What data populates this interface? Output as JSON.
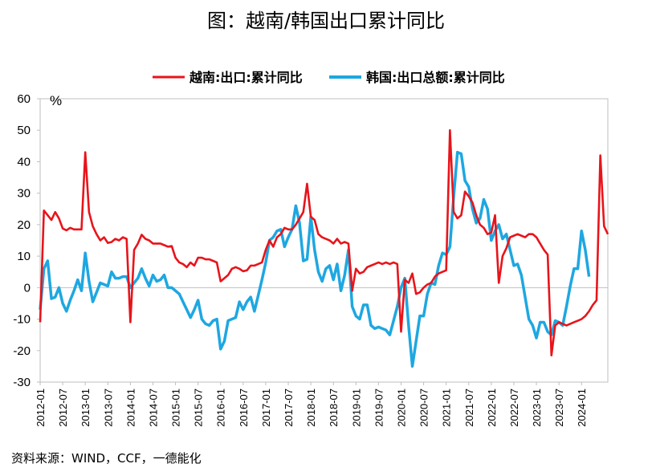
{
  "title": "图：越南/韩国出口累计同比",
  "source": "资料来源：WIND，CCF，一德能化",
  "chart_data": {
    "type": "line",
    "unit_label": "%",
    "ylim": [
      -30,
      60
    ],
    "yticks": [
      60,
      50,
      40,
      30,
      20,
      10,
      0,
      -10,
      -20,
      -30
    ],
    "x_start": "2012-01",
    "x_end": "2024-04",
    "xtick_labels": [
      "2012-01",
      "2012-07",
      "2013-01",
      "2013-07",
      "2014-01",
      "2014-07",
      "2015-01",
      "2015-07",
      "2016-01",
      "2016-07",
      "2017-01",
      "2017-07",
      "2018-01",
      "2018-07",
      "2019-01",
      "2019-07",
      "2020-01",
      "2020-07",
      "2021-01",
      "2021-07",
      "2022-01",
      "2022-07",
      "2023-01",
      "2023-07",
      "2024-01"
    ],
    "grid": false,
    "legend_position": "top",
    "series": [
      {
        "name": "越南:出口:累计同比",
        "color": "#e8141b",
        "values": [
          -11,
          24.5,
          23,
          21.5,
          24,
          22,
          18.8,
          18.2,
          19,
          18.5,
          18.5,
          18.5,
          43,
          24,
          19.5,
          17,
          15,
          16,
          14.2,
          14.5,
          15.5,
          15,
          16,
          15.5,
          -11,
          12,
          14,
          16.8,
          15.5,
          15,
          14,
          14,
          14,
          13.5,
          13,
          13.2,
          9.5,
          8,
          7.5,
          6.5,
          8,
          7,
          9.5,
          9.5,
          9,
          9,
          8.5,
          8,
          2,
          3,
          4,
          6,
          6.5,
          6,
          5.2,
          5.5,
          7,
          7,
          7.5,
          8,
          12,
          15,
          13,
          16,
          17,
          19,
          18.5,
          18.5,
          20,
          22,
          24,
          33,
          22.5,
          21.5,
          17,
          16,
          15.5,
          15,
          14,
          15.5,
          14,
          14.5,
          14,
          -1,
          6,
          4.5,
          5,
          6.5,
          7,
          7.5,
          8,
          7.5,
          8,
          7.5,
          8,
          7.5,
          -14,
          2.5,
          1.5,
          4.5,
          -2,
          -1.5,
          0,
          1,
          1.5,
          3.5,
          4.5,
          5,
          5.5,
          50,
          24,
          22,
          23,
          30.5,
          29,
          27,
          23,
          20,
          19,
          17,
          17.5,
          23,
          1.5,
          10,
          12.5,
          16,
          16.5,
          17,
          16.5,
          16,
          17,
          17,
          16,
          14,
          12,
          10.5,
          -21.5,
          -12,
          -11,
          -11.5,
          -12,
          -11.5,
          -11,
          -10.5,
          -10,
          -9,
          -7.5,
          -5.5,
          -4,
          42,
          19.5,
          17
        ]
      },
      {
        "name": "韩国:出口总额:累计同比",
        "color": "#1ea7e1",
        "values": [
          -7,
          6,
          8.5,
          -3.5,
          -3,
          0,
          -5,
          -7.5,
          -4,
          -1,
          2.5,
          -1,
          11,
          2,
          -4.5,
          -1.5,
          1.5,
          1,
          0.5,
          5,
          3,
          3,
          3.5,
          3.5,
          0,
          1.5,
          3,
          6,
          3,
          0.5,
          4,
          2,
          2.5,
          4,
          0,
          0,
          -1,
          -2,
          -4.5,
          -7,
          -9.5,
          -7,
          -4,
          -10,
          -11.5,
          -12,
          -10.5,
          -10,
          -19.5,
          -17,
          -10.5,
          -10,
          -9.5,
          -4.5,
          -7,
          -4.5,
          -3,
          -7.5,
          -2.5,
          2.5,
          8,
          15,
          16,
          18,
          18.5,
          13,
          16,
          18.5,
          26,
          20.5,
          8.5,
          9,
          22.5,
          12,
          5,
          2,
          6,
          7,
          2.5,
          7.5,
          -1,
          4,
          12,
          -6,
          -9,
          -10,
          -5.5,
          -5.5,
          -12,
          -13,
          -12.5,
          -13,
          -13.5,
          -15,
          -10.5,
          -6,
          0,
          3,
          -12,
          -25,
          -17,
          -9,
          -9,
          -2,
          1.5,
          1,
          7,
          11,
          10.5,
          13,
          29,
          43,
          42.5,
          34,
          32,
          25,
          20.5,
          22,
          28,
          25,
          15,
          18,
          20,
          15.5,
          17,
          12,
          7,
          7.5,
          4,
          -3,
          -10,
          -12,
          -16,
          -11,
          -11,
          -14,
          -15,
          -10.5,
          -11,
          -12,
          -6,
          0.5,
          6,
          6,
          18,
          12,
          3.5
        ]
      }
    ]
  }
}
